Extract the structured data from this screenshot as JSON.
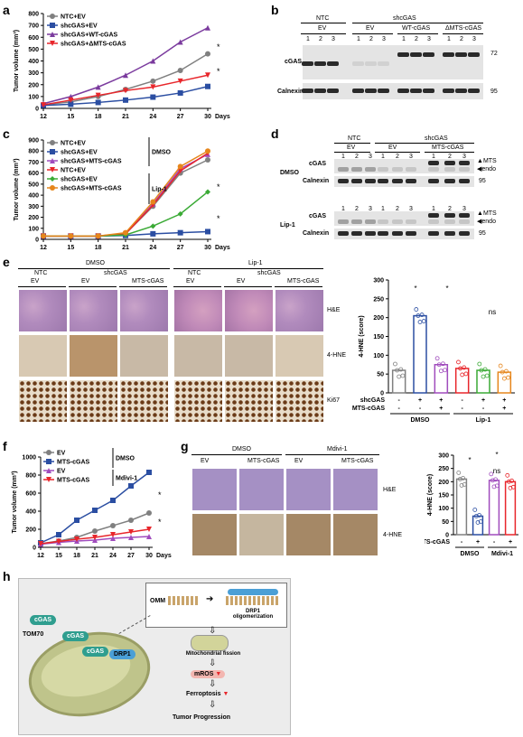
{
  "panel_labels": {
    "a": "a",
    "b": "b",
    "c": "c",
    "d": "d",
    "e": "e",
    "f": "f",
    "g": "g",
    "h": "h"
  },
  "chart_data": [
    {
      "id": "a",
      "type": "line",
      "title": "",
      "ylabel": "Tumor volume (mm³)",
      "xlabel": "Days",
      "x": [
        12,
        15,
        18,
        21,
        24,
        27,
        30
      ],
      "ylim": [
        0,
        800
      ],
      "yticks": [
        0,
        100,
        200,
        300,
        400,
        500,
        600,
        700,
        800
      ],
      "series": [
        {
          "name": "NTC+EV",
          "color": "#808080",
          "marker": "circle",
          "values": [
            30,
            55,
            100,
            160,
            230,
            320,
            460
          ]
        },
        {
          "name": "shcGAS+EV",
          "color": "#2b4ea2",
          "marker": "square",
          "values": [
            25,
            35,
            50,
            70,
            95,
            130,
            185
          ]
        },
        {
          "name": "shcGAS+WT-cGAS",
          "color": "#7b3b9e",
          "marker": "triangle",
          "values": [
            40,
            100,
            180,
            280,
            400,
            560,
            680
          ]
        },
        {
          "name": "shcGAS+ΔMTS-cGAS",
          "color": "#e8262b",
          "marker": "triangle-down",
          "values": [
            30,
            70,
            110,
            150,
            180,
            230,
            280
          ]
        }
      ],
      "annotations": [
        "*",
        "*"
      ]
    },
    {
      "id": "c",
      "type": "line",
      "ylabel": "Tumor volume (mm³)",
      "xlabel": "Days",
      "x": [
        12,
        15,
        18,
        21,
        24,
        27,
        30
      ],
      "ylim": [
        0,
        900
      ],
      "yticks": [
        0,
        100,
        200,
        300,
        400,
        500,
        600,
        700,
        800,
        900
      ],
      "groups": [
        "DMSO",
        "Lip-1"
      ],
      "series": [
        {
          "name": "NTC+EV",
          "group": "DMSO",
          "color": "#808080",
          "marker": "circle",
          "values": [
            30,
            30,
            30,
            50,
            300,
            600,
            720
          ]
        },
        {
          "name": "shcGAS+EV",
          "group": "DMSO",
          "color": "#2b4ea2",
          "marker": "square",
          "values": [
            30,
            30,
            30,
            35,
            50,
            60,
            70
          ]
        },
        {
          "name": "shcGAS+MTS-cGAS",
          "group": "DMSO",
          "color": "#a04cbd",
          "marker": "triangle",
          "values": [
            30,
            30,
            30,
            55,
            320,
            640,
            770
          ]
        },
        {
          "name": "NTC+EV",
          "group": "Lip-1",
          "color": "#e8262b",
          "marker": "triangle-down",
          "values": [
            30,
            30,
            30,
            50,
            310,
            620,
            780
          ]
        },
        {
          "name": "shcGAS+EV",
          "group": "Lip-1",
          "color": "#3aaa35",
          "marker": "diamond",
          "values": [
            30,
            30,
            30,
            40,
            120,
            230,
            430
          ]
        },
        {
          "name": "shcGAS+MTS-cGAS",
          "group": "Lip-1",
          "color": "#e6861c",
          "marker": "circle",
          "values": [
            30,
            30,
            30,
            60,
            340,
            660,
            800
          ]
        }
      ],
      "annotations": [
        "*",
        "*"
      ]
    },
    {
      "id": "e-bar",
      "type": "bar",
      "ylabel": "4-HNE (score)",
      "ylim": [
        0,
        300
      ],
      "yticks": [
        0,
        50,
        100,
        150,
        200,
        250,
        300
      ],
      "values": [
        60,
        205,
        75,
        65,
        60,
        55
      ],
      "colors": [
        "#808080",
        "#2b4ea2",
        "#a04cbd",
        "#e8262b",
        "#3aaa35",
        "#e6861c"
      ],
      "row_labels": [
        "shcGAS",
        "MTS-cGAS"
      ],
      "conditions": [
        [
          "-",
          "-"
        ],
        [
          "+",
          "-"
        ],
        [
          "+",
          "+"
        ],
        [
          "-",
          "-"
        ],
        [
          "+",
          "-"
        ],
        [
          "+",
          "+"
        ]
      ],
      "groups": [
        "DMSO",
        "Lip-1"
      ],
      "annotations": [
        "*",
        "*",
        "ns"
      ]
    },
    {
      "id": "f",
      "type": "line",
      "ylabel": "Tumor volume (mm³)",
      "xlabel": "Days",
      "x": [
        12,
        15,
        18,
        21,
        24,
        27,
        30
      ],
      "ylim": [
        0,
        1000
      ],
      "yticks": [
        0,
        200,
        400,
        600,
        800,
        1000
      ],
      "groups": [
        "DMSO",
        "Mdivi-1"
      ],
      "series": [
        {
          "name": "EV",
          "group": "DMSO",
          "color": "#808080",
          "marker": "circle",
          "values": [
            40,
            70,
            110,
            180,
            240,
            300,
            380
          ]
        },
        {
          "name": "MTS-cGAS",
          "group": "DMSO",
          "color": "#2b4ea2",
          "marker": "square",
          "values": [
            50,
            140,
            300,
            410,
            520,
            680,
            830
          ]
        },
        {
          "name": "EV",
          "group": "Mdivi-1",
          "color": "#a04cbd",
          "marker": "triangle",
          "values": [
            35,
            55,
            70,
            80,
            100,
            110,
            120
          ]
        },
        {
          "name": "MTS-cGAS",
          "group": "Mdivi-1",
          "color": "#e8262b",
          "marker": "triangle-down",
          "values": [
            40,
            65,
            90,
            110,
            140,
            170,
            200
          ]
        }
      ],
      "annotations": [
        "*",
        "*"
      ]
    },
    {
      "id": "g-bar",
      "type": "bar",
      "ylabel": "4-HNE (score)",
      "ylim": [
        0,
        300
      ],
      "yticks": [
        0,
        50,
        100,
        150,
        200,
        250,
        300
      ],
      "values": [
        210,
        70,
        205,
        200
      ],
      "colors": [
        "#808080",
        "#2b4ea2",
        "#a04cbd",
        "#e8262b"
      ],
      "row_labels": [
        "MTS-cGAS"
      ],
      "conditions": [
        "-",
        "+",
        "-",
        "+"
      ],
      "groups": [
        "DMSO",
        "Mdivi-1"
      ],
      "annotations": [
        "*",
        "*",
        "ns"
      ]
    }
  ],
  "blots": {
    "b": {
      "header1": [
        "NTC",
        "shcGAS"
      ],
      "header2": [
        "EV",
        "EV",
        "WT-cGAS",
        "ΔMTS-cGAS"
      ],
      "lanes": [
        "1",
        "2",
        "3",
        "1",
        "2",
        "3",
        "1",
        "2",
        "3",
        "1",
        "2",
        "3"
      ],
      "rows": [
        "cGAS",
        "Calnexin"
      ],
      "mw": [
        "72",
        "95"
      ]
    },
    "d": {
      "header1": [
        "NTC",
        "shcGAS"
      ],
      "header2": [
        "EV",
        "EV",
        "MTS-cGAS"
      ],
      "lanes": [
        "1",
        "2",
        "3",
        "1",
        "2",
        "3",
        "1",
        "2",
        "3"
      ],
      "sections": [
        "DMSO",
        "Lip-1"
      ],
      "rows": [
        "cGAS",
        "Calnexin"
      ],
      "markers": [
        "MTS",
        "endo"
      ],
      "mw": "95"
    }
  },
  "ihc_e": {
    "top": [
      "DMSO",
      "Lip-1"
    ],
    "mid": [
      "NTC",
      "shcGAS",
      "NTC",
      "shcGAS"
    ],
    "cols": [
      "EV",
      "EV",
      "MTS-cGAS",
      "EV",
      "EV",
      "MTS-cGAS"
    ],
    "rows": [
      "H&E",
      "4-HNE",
      "Ki67"
    ]
  },
  "ihc_g": {
    "top": [
      "DMSO",
      "Mdivi-1"
    ],
    "cols": [
      "EV",
      "MTS-cGAS",
      "EV",
      "MTS-cGAS"
    ],
    "rows": [
      "H&E",
      "4-HNE"
    ]
  },
  "diagram_h": {
    "ctx": [
      "cGAS",
      "cGAS",
      "cGAS",
      "DRP1",
      "TOM70"
    ],
    "omm": "OMM",
    "drp1_oligo": "DRP1 oligomerization",
    "fission": "Mitochondrial fission",
    "mros": "mROS",
    "ferro": "Ferroptosis",
    "tumor": "Tumor Progression"
  }
}
